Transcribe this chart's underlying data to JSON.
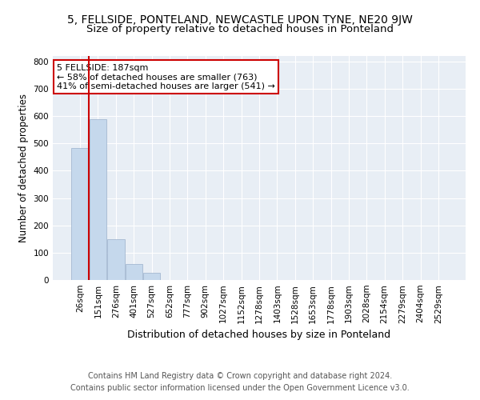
{
  "title": "5, FELLSIDE, PONTELAND, NEWCASTLE UPON TYNE, NE20 9JW",
  "subtitle": "Size of property relative to detached houses in Ponteland",
  "xlabel": "Distribution of detached houses by size in Ponteland",
  "ylabel": "Number of detached properties",
  "bar_labels": [
    "26sqm",
    "151sqm",
    "276sqm",
    "401sqm",
    "527sqm",
    "652sqm",
    "777sqm",
    "902sqm",
    "1027sqm",
    "1152sqm",
    "1278sqm",
    "1403sqm",
    "1528sqm",
    "1653sqm",
    "1778sqm",
    "1903sqm",
    "2028sqm",
    "2154sqm",
    "2279sqm",
    "2404sqm",
    "2529sqm"
  ],
  "bar_values": [
    484,
    590,
    150,
    58,
    25,
    0,
    0,
    0,
    0,
    0,
    0,
    0,
    0,
    0,
    0,
    0,
    0,
    0,
    0,
    0,
    0
  ],
  "bar_color": "#c5d8ec",
  "bar_edge_color": "#9ab0cc",
  "vline_color": "#cc0000",
  "vline_x_index": 1,
  "annotation_text": "5 FELLSIDE: 187sqm\n← 58% of detached houses are smaller (763)\n41% of semi-detached houses are larger (541) →",
  "annotation_box_color": "white",
  "annotation_box_edge": "#cc0000",
  "ylim": [
    0,
    820
  ],
  "yticks": [
    0,
    100,
    200,
    300,
    400,
    500,
    600,
    700,
    800
  ],
  "bg_color": "#e8eef5",
  "footer": "Contains HM Land Registry data © Crown copyright and database right 2024.\nContains public sector information licensed under the Open Government Licence v3.0.",
  "title_fontsize": 10,
  "subtitle_fontsize": 9.5,
  "xlabel_fontsize": 9,
  "ylabel_fontsize": 8.5,
  "tick_fontsize": 7.5,
  "footer_fontsize": 7,
  "annotation_fontsize": 8
}
